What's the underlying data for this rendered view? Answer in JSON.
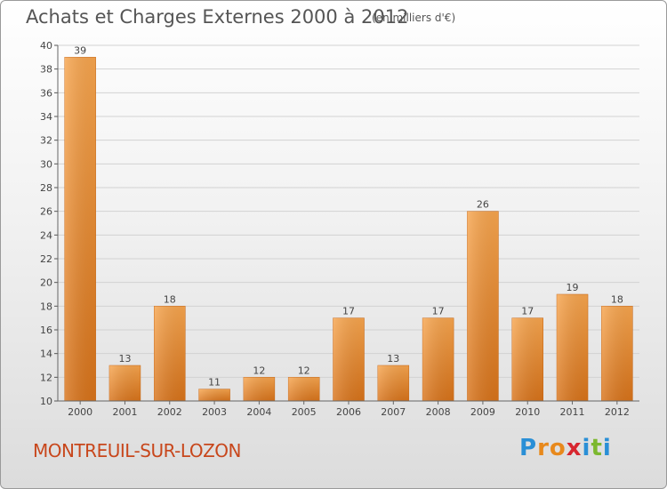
{
  "header": {
    "title": "Achats et Charges Externes 2000 à 2012",
    "subtitle": "(en milliers d'€)"
  },
  "footer": {
    "town": "MONTREUIL-SUR-LOZON",
    "logo_letters": [
      "P",
      "r",
      "o",
      "x",
      "i",
      "t",
      "i"
    ],
    "logo_colors": [
      "#2a8fd6",
      "#e8891c",
      "#e8891c",
      "#d7262f",
      "#2a8fd6",
      "#7cb82f",
      "#2a8fd6"
    ]
  },
  "chart_data": {
    "type": "bar",
    "categories": [
      "2000",
      "2001",
      "2002",
      "2003",
      "2004",
      "2005",
      "2006",
      "2007",
      "2008",
      "2009",
      "2010",
      "2011",
      "2012"
    ],
    "values": [
      39,
      13,
      18,
      11,
      12,
      12,
      17,
      13,
      17,
      26,
      17,
      19,
      18
    ],
    "title": "Achats et Charges Externes 2000 à 2012",
    "xlabel": "",
    "ylabel": "",
    "ylim": [
      10,
      40
    ],
    "yticks": [
      10,
      12,
      14,
      16,
      18,
      20,
      22,
      24,
      26,
      28,
      30,
      32,
      34,
      36,
      38,
      40
    ],
    "grid": true,
    "bar_color": "#e98a2c"
  }
}
